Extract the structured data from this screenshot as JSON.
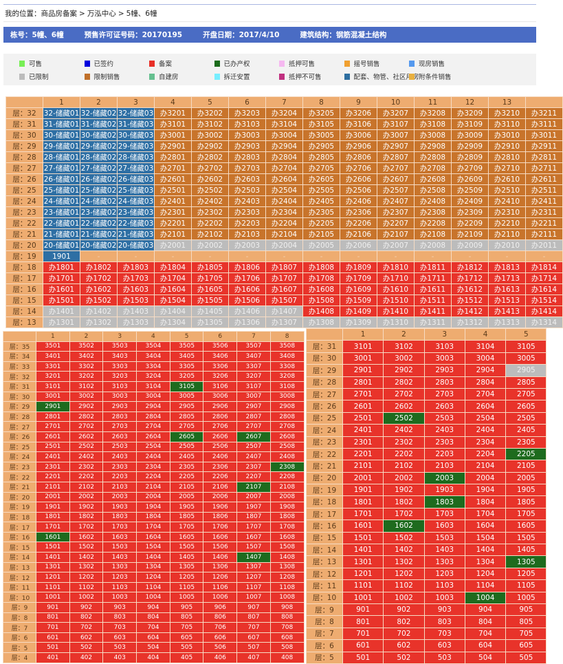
{
  "breadcrumb": {
    "prefix": "我的位置：",
    "items": [
      "商品房备案",
      "万泓中心",
      "5幢、6幢"
    ],
    "separator": ">"
  },
  "info": {
    "building": "栋号：5幢、6幢",
    "permit": "预售许可证号码：20170195",
    "open_date": "开盘日期：2017/4/10",
    "structure": "建筑结构：钢筋混凝土结构"
  },
  "legend": [
    {
      "label": "可售",
      "color": "#77ee55"
    },
    {
      "label": "已签约",
      "color": "#0000dd"
    },
    {
      "label": "备案",
      "color": "#e83028"
    },
    {
      "label": "已办产权",
      "color": "#1a6b1a"
    },
    {
      "label": "抵押可售",
      "color": "#f5b8f0"
    },
    {
      "label": "摇号销售",
      "color": "#f0a030"
    },
    {
      "label": "现房销售",
      "color": "#5599ee"
    },
    {
      "label": "已限制",
      "color": "#bbbbbb"
    },
    {
      "label": "限制销售",
      "color": "#c0702a"
    },
    {
      "label": "自建房",
      "color": "#66c090"
    },
    {
      "label": "拆迁安置",
      "color": "#77eeff"
    },
    {
      "label": "抵押不可售",
      "color": "#c03080"
    },
    {
      "label": "配套、物管、社区用房",
      "color": "#2e6fa0"
    },
    {
      "label": "附条件销售",
      "color": "#e8b040"
    }
  ],
  "status_colors": {
    "P": "#2e6fa4",
    "B": "#c8742b",
    "G": "#bcbcbc",
    "R": "#e8332a",
    "O": "#eeac70",
    "K": "#1e6b1e"
  },
  "grids": [
    {
      "columns": [
        "1",
        "2",
        "3",
        "4",
        "5",
        "6",
        "7",
        "8",
        "9",
        "10",
        "11",
        "12",
        "13",
        ""
      ],
      "rows": [
        {
          "f": "层：32",
          "c": "32-储藏01 32-储藏02 32-储藏03 办3201 办3202 办3203 办3204 办3205 办3206 办3207 办3208 办3209 办3210 办3211",
          "s": "PPPBBBBBBBBBBB"
        },
        {
          "f": "层：31",
          "c": "31-储藏01 31-储藏02 31-储藏03 办3101 办3102 办3103 办3104 办3105 办3106 办3107 办3108 办3109 办3110 办3111",
          "s": "PPPBBBBBBBBBBB"
        },
        {
          "f": "层：30",
          "c": "30-储藏01 30-储藏02 30-储藏03 办3001 办3002 办3003 办3004 办3005 办3006 办3007 办3008 办3009 办3010 办3011",
          "s": "PPPBBBBBBBBBBB"
        },
        {
          "f": "层：29",
          "c": "29-储藏01 29-储藏02 29-储藏03 办2901 办2902 办2903 办2904 办2905 办2906 办2907 办2908 办2909 办2910 办2911",
          "s": "PPPBBBBBBBBBBB"
        },
        {
          "f": "层：28",
          "c": "28-储藏01 28-储藏02 28-储藏03 办2801 办2802 办2803 办2804 办2805 办2806 办2807 办2808 办2809 办2810 办2811",
          "s": "PPPBBBBBBBBBBB"
        },
        {
          "f": "层：27",
          "c": "27-储藏01 27-储藏02 27-储藏03 办2701 办2702 办2703 办2704 办2705 办2706 办2707 办2708 办2709 办2710 办2711",
          "s": "PPPBBBBBBBBBBB"
        },
        {
          "f": "层：26",
          "c": "26-储藏01 26-储藏02 26-储藏03 办2601 办2602 办2603 办2604 办2605 办2606 办2607 办2608 办2609 办2610 办2611",
          "s": "PPPBBBBBBBBBBB"
        },
        {
          "f": "层：25",
          "c": "25-储藏01 25-储藏02 25-储藏03 办2501 办2502 办2503 办2504 办2505 办2506 办2507 办2508 办2509 办2510 办2511",
          "s": "PPPBBBBBBBBBBB"
        },
        {
          "f": "层：24",
          "c": "24-储藏01 24-储藏02 24-储藏03 办2401 办2402 办2403 办2404 办2405 办2406 办2407 办2408 办2409 办2410 办2411",
          "s": "PPPBBBBBBBBBBB"
        },
        {
          "f": "层：23",
          "c": "23-储藏01 23-储藏02 23-储藏03 办2301 办2302 办2303 办2304 办2305 办2306 办2307 办2308 办2309 办2310 办2311",
          "s": "PPPBBBBBBBBBBB"
        },
        {
          "f": "层：22",
          "c": "22-储藏01 22-储藏02 22-储藏03 办2201 办2202 办2203 办2204 办2205 办2206 办2207 办2208 办2209 办2210 办2211",
          "s": "PPPBBBBBBBBBBB"
        },
        {
          "f": "层：21",
          "c": "21-储藏01 21-储藏02 21-储藏03 办2101 办2102 办2103 办2104 办2105 办2106 办2107 办2108 办2109 办2110 办2111",
          "s": "PPPBBBBBBBBBBB"
        },
        {
          "f": "层：20",
          "c": "20-储藏01 20-储藏02 20-储藏03 办2001 办2002 办2003 办2004 办2005 办2006 办2007 办2008 办2009 办2010 办2011",
          "s": "PPPGGGGGGGGGGG"
        },
        {
          "f": "层：19",
          "c": "1901 - - - - - - - - - - - - -",
          "s": "POOOOOOOOOOOOO"
        },
        {
          "f": "层：18",
          "c": "办1801 办1802 办1803 办1804 办1805 办1806 办1807 办1808 办1809 办1810 办1811 办1812 办1813 办1814",
          "s": "RRRRRRRRRRRRRR"
        },
        {
          "f": "层：17",
          "c": "办1701 办1702 办1703 办1704 办1705 办1706 办1707 办1708 办1709 办1710 办1711 办1712 办1713 办1714",
          "s": "RRRRRRRRRRRRRR"
        },
        {
          "f": "层：16",
          "c": "办1601 办1602 办1603 办1604 办1605 办1606 办1607 办1608 办1609 办1610 办1611 办1612 办1613 办1614",
          "s": "RRRRRRRRRRRRRR"
        },
        {
          "f": "层：15",
          "c": "办1501 办1502 办1503 办1504 办1505 办1506 办1507 办1508 办1509 办1510 办1511 办1512 办1513 办1514",
          "s": "RRRRRRRRRRRRRR"
        },
        {
          "f": "层：14",
          "c": "办1401 办1402 办1403 办1404 办1405 办1406 办1407 办1408 办1409 办1410 办1411 办1412 办1413 办1414",
          "s": "GGGGGGGRRRRRRR"
        },
        {
          "f": "层：13",
          "c": "办1301 办1302 办1303 办1304 办1305 办1306 办1307 办1308 办1309 办1310 办1311 办1312 办1313 办1314",
          "s": "GGGGGGGGGGGGGG"
        }
      ]
    },
    {
      "columns": [
        "1",
        "2",
        "3",
        "4",
        "5",
        "6",
        "7",
        "8"
      ],
      "rows": [
        {
          "f": "层：35",
          "c": "3501 3502 3503 3504 3505 3506 3507 3508",
          "s": "RRRRRRRR"
        },
        {
          "f": "层：34",
          "c": "3401 3402 3403 3404 3405 3406 3407 3408",
          "s": "RRRRRRRR"
        },
        {
          "f": "层：33",
          "c": "3301 3302 3303 3304 3305 3306 3307 3308",
          "s": "RRRRRRRR"
        },
        {
          "f": "层：32",
          "c": "3201 3202 3203 3204 3205 3206 3207 3208",
          "s": "RRRRRRRR"
        },
        {
          "f": "层：31",
          "c": "3101 3102 3103 3104 3105 3106 3107 3108",
          "s": "RRRRKRRR"
        },
        {
          "f": "层：30",
          "c": "3001 3002 3003 3004 3005 3006 3007 3008",
          "s": "RRRRRRRR"
        },
        {
          "f": "层：29",
          "c": "2901 2902 2903 2904 2905 2906 2907 2908",
          "s": "KRRRRRRR"
        },
        {
          "f": "层：28",
          "c": "2801 2802 2803 2804 2805 2806 2807 2808",
          "s": "RRRRRRRR"
        },
        {
          "f": "层：27",
          "c": "2701 2702 2703 2704 2705 2706 2707 2708",
          "s": "RRRRRRRR"
        },
        {
          "f": "层：26",
          "c": "2601 2602 2603 2604 2605 2606 2607 2608",
          "s": "RRRRKRKR"
        },
        {
          "f": "层：25",
          "c": "2501 2502 2503 2504 2505 2506 2507 2508",
          "s": "RRRRRRRR"
        },
        {
          "f": "层：24",
          "c": "2401 2402 2403 2404 2405 2406 2407 2408",
          "s": "RRRRRRRR"
        },
        {
          "f": "层：23",
          "c": "2301 2302 2303 2304 2305 2306 2307 2308",
          "s": "RRRRRRRK"
        },
        {
          "f": "层：22",
          "c": "2201 2202 2203 2204 2205 2206 2207 2208",
          "s": "RRRRRRRR"
        },
        {
          "f": "层：21",
          "c": "2101 2102 2103 2104 2105 2106 2107 2108",
          "s": "RRRRRRKR"
        },
        {
          "f": "层：20",
          "c": "2001 2002 2003 2004 2005 2006 2007 2008",
          "s": "RRRRRRRR"
        },
        {
          "f": "层：19",
          "c": "1901 1902 1903 1904 1905 1906 1907 1908",
          "s": "RRRRRRRR"
        },
        {
          "f": "层：18",
          "c": "1801 1802 1803 1804 1805 1806 1807 1808",
          "s": "RRRRRRRR"
        },
        {
          "f": "层：17",
          "c": "1701 1702 1703 1704 1705 1706 1707 1708",
          "s": "RRRRRRRR"
        },
        {
          "f": "层：16",
          "c": "1601 1602 1603 1604 1605 1606 1607 1608",
          "s": "KRRRRRRR"
        },
        {
          "f": "层：15",
          "c": "1501 1502 1503 1504 1505 1506 1507 1508",
          "s": "RRRRRRRR"
        },
        {
          "f": "层：14",
          "c": "1401 1402 1403 1404 1405 1406 1407 1408",
          "s": "RRRRRRKR"
        },
        {
          "f": "层：13",
          "c": "1301 1302 1303 1304 1305 1306 1307 1308",
          "s": "RRRRRRRR"
        },
        {
          "f": "层：12",
          "c": "1201 1202 1203 1204 1205 1206 1207 1208",
          "s": "RRRRRRRR"
        },
        {
          "f": "层：11",
          "c": "1101 1102 1103 1104 1105 1106 1107 1108",
          "s": "RRRRRRRR"
        },
        {
          "f": "层：10",
          "c": "1001 1002 1003 1004 1005 1006 1007 1008",
          "s": "RRRRRRRR"
        },
        {
          "f": "层：9",
          "c": "901 902 903 904 905 906 907 908",
          "s": "RRRRRRRR"
        },
        {
          "f": "层：8",
          "c": "801 802 803 804 805 806 807 808",
          "s": "RRRRRRRR"
        },
        {
          "f": "层：7",
          "c": "701 702 703 704 705 706 707 708",
          "s": "RRRRRRRR"
        },
        {
          "f": "层：6",
          "c": "601 602 603 604 605 606 607 608",
          "s": "RRRRRRRR"
        },
        {
          "f": "层：5",
          "c": "501 502 503 504 505 506 507 508",
          "s": "RRRRRRRR"
        },
        {
          "f": "层：4",
          "c": "401 402 403 404 405 406 407 408",
          "s": "RRRRRRRR"
        }
      ]
    },
    {
      "columns": [
        "1",
        "2",
        "3",
        "4",
        "5"
      ],
      "rows": [
        {
          "f": "层：31",
          "c": "3101 3102 3103 3104 3105",
          "s": "RRRRR"
        },
        {
          "f": "层：30",
          "c": "3001 3002 3003 3004 3005",
          "s": "RRRRR"
        },
        {
          "f": "层：29",
          "c": "2901 2902 2903 2904 2905",
          "s": "RRRRG"
        },
        {
          "f": "层：28",
          "c": "2801 2802 2803 2804 2805",
          "s": "RRRRR"
        },
        {
          "f": "层：27",
          "c": "2701 2702 2703 2704 2705",
          "s": "RRRRR"
        },
        {
          "f": "层：26",
          "c": "2601 2602 2603 2604 2605",
          "s": "RRRRR"
        },
        {
          "f": "层：25",
          "c": "2501 2502 2503 2504 2505",
          "s": "RKRRR"
        },
        {
          "f": "层：24",
          "c": "2401 2402 2403 2404 2405",
          "s": "RRRRR"
        },
        {
          "f": "层：23",
          "c": "2301 2302 2303 2304 2305",
          "s": "RRRRR"
        },
        {
          "f": "层：22",
          "c": "2201 2202 2203 2204 2205",
          "s": "RRRRK"
        },
        {
          "f": "层：21",
          "c": "2101 2102 2103 2104 2105",
          "s": "RRRRR"
        },
        {
          "f": "层：20",
          "c": "2001 2002 2003 2004 2005",
          "s": "RRKRR"
        },
        {
          "f": "层：19",
          "c": "1901 1902 1903 1904 1905",
          "s": "RRRRR"
        },
        {
          "f": "层：18",
          "c": "1801 1802 1803 1804 1805",
          "s": "RRKRR"
        },
        {
          "f": "层：17",
          "c": "1701 1702 1703 1704 1705",
          "s": "RRRRR"
        },
        {
          "f": "层：16",
          "c": "1601 1602 1603 1604 1605",
          "s": "RKRRR"
        },
        {
          "f": "层：15",
          "c": "1501 1502 1503 1504 1505",
          "s": "RRRRR"
        },
        {
          "f": "层：14",
          "c": "1401 1402 1403 1404 1405",
          "s": "RRRRR"
        },
        {
          "f": "层：13",
          "c": "1301 1302 1303 1304 1305",
          "s": "RRRRK"
        },
        {
          "f": "层：12",
          "c": "1201 1202 1203 1204 1205",
          "s": "RRRRR"
        },
        {
          "f": "层：11",
          "c": "1101 1102 1103 1104 1105",
          "s": "RRRRR"
        },
        {
          "f": "层：10",
          "c": "1001 1002 1003 1004 1005",
          "s": "RRRKR"
        },
        {
          "f": "层：9",
          "c": "901 902 903 904 905",
          "s": "RRRRR"
        },
        {
          "f": "层：8",
          "c": "801 802 803 804 805",
          "s": "RRRRR"
        },
        {
          "f": "层：7",
          "c": "701 702 703 704 705",
          "s": "RRRRR"
        },
        {
          "f": "层：6",
          "c": "601 602 603 604 605",
          "s": "RRRRR"
        },
        {
          "f": "层：5",
          "c": "501 502 503 504 505",
          "s": "RRRRR"
        }
      ]
    }
  ]
}
